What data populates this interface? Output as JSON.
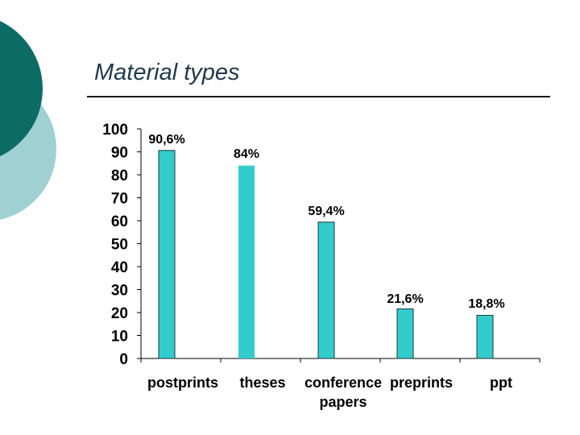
{
  "slide": {
    "title": "Material types",
    "accent_colors": {
      "dark_teal": "#0d6b66",
      "light_teal": "#9fd0d2"
    }
  },
  "chart_data": {
    "type": "bar",
    "title": "",
    "xlabel": "",
    "ylabel": "",
    "categories": [
      "postprints",
      "theses",
      "conference papers",
      "preprints",
      "ppt"
    ],
    "values": [
      90.6,
      84,
      59.4,
      21.6,
      18.8
    ],
    "data_labels": [
      "90,6%",
      "84%",
      "59,4%",
      "21,6%",
      "18,8%"
    ],
    "ylim": [
      0,
      100
    ],
    "y_ticks": [
      0,
      10,
      20,
      30,
      40,
      50,
      60,
      70,
      80,
      90,
      100
    ],
    "grid": false,
    "legend": "none",
    "bar_colors": [
      "#33cccc",
      "#33cccc",
      "#33cccc",
      "#33cccc",
      "#33cccc"
    ],
    "bar_outline_color": "#1a3a3a",
    "second_bar_no_outline": true
  }
}
